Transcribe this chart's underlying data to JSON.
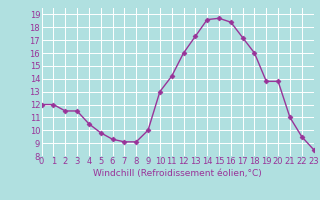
{
  "x": [
    0,
    1,
    2,
    3,
    4,
    5,
    6,
    7,
    8,
    9,
    10,
    11,
    12,
    13,
    14,
    15,
    16,
    17,
    18,
    19,
    20,
    21,
    22,
    23
  ],
  "y": [
    12,
    12,
    11.5,
    11.5,
    10.5,
    9.8,
    9.3,
    9.1,
    9.1,
    10,
    13,
    14.2,
    16,
    17.3,
    18.6,
    18.7,
    18.4,
    17.2,
    16,
    13.8,
    13.8,
    11,
    9.5,
    8.5
  ],
  "line_color": "#993399",
  "marker": "D",
  "markersize": 2.5,
  "linewidth": 1.0,
  "xlabel": "Windchill (Refroidissement éolien,°C)",
  "ylim": [
    8,
    19.5
  ],
  "xlim": [
    0,
    23
  ],
  "yticks": [
    8,
    9,
    10,
    11,
    12,
    13,
    14,
    15,
    16,
    17,
    18,
    19
  ],
  "xticks": [
    0,
    1,
    2,
    3,
    4,
    5,
    6,
    7,
    8,
    9,
    10,
    11,
    12,
    13,
    14,
    15,
    16,
    17,
    18,
    19,
    20,
    21,
    22,
    23
  ],
  "bg_color": "#b0e0e0",
  "grid_color": "#ffffff",
  "tick_label_color": "#993399",
  "axis_label_color": "#993399",
  "xlabel_fontsize": 6.5,
  "tick_fontsize": 6.0
}
